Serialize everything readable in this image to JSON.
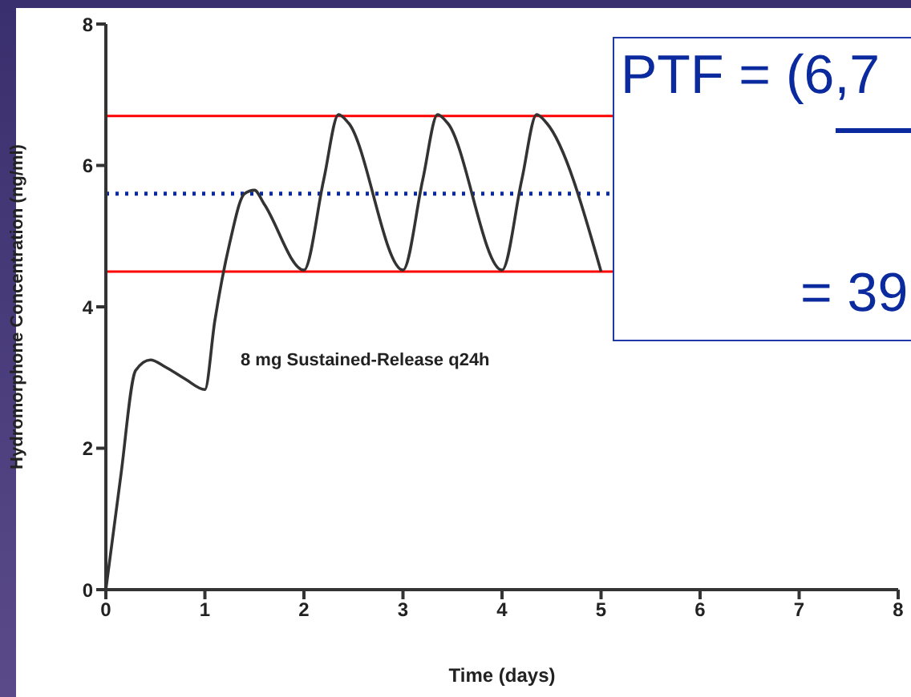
{
  "chart_data": {
    "type": "line",
    "xlabel": "Time  (days)",
    "ylabel": "Hydromorphone Concentration  (ng/ml)",
    "x": [
      0,
      0.15,
      0.3,
      0.45,
      0.6,
      0.8,
      1.0,
      1.1,
      1.25,
      1.4,
      1.5,
      1.6,
      2.0,
      2.2,
      2.35,
      2.45,
      3.0,
      3.2,
      3.35,
      3.45,
      4.0,
      4.2,
      4.35,
      4.45,
      5.0
    ],
    "series": [
      {
        "color": "#333333",
        "values": [
          0,
          1.6,
          3.1,
          3.25,
          3.15,
          2.98,
          2.83,
          3.8,
          4.9,
          5.6,
          5.65,
          5.45,
          4.52,
          5.8,
          6.72,
          6.6,
          4.52,
          5.8,
          6.72,
          6.6,
          4.52,
          5.8,
          6.72,
          6.6,
          4.5
        ]
      }
    ],
    "xlim": [
      0,
      8
    ],
    "xticks": [
      0,
      1,
      2,
      3,
      4,
      5,
      6,
      7,
      8
    ],
    "ylim": [
      0,
      8
    ],
    "yticks": [
      0,
      2,
      4,
      6,
      8
    ],
    "grid": false,
    "legend": false,
    "marker": "none",
    "line_style": "solid",
    "ref_lines": [
      {
        "axis": "y",
        "value": 6.7,
        "color": "#ff0000"
      },
      {
        "axis": "y",
        "value": 4.5,
        "color": "#ff0000"
      },
      {
        "axis": "y",
        "value": 5.6,
        "color": "#0a2a9e",
        "line_style": "dotted"
      }
    ],
    "annotations": [
      "PTF = (6,7",
      "= 39",
      "8 mg Sustained-Release q24h"
    ]
  }
}
